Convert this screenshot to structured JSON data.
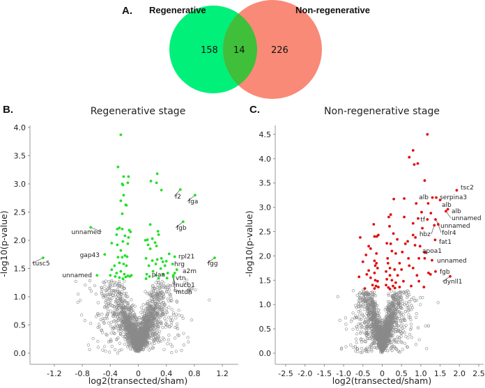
{
  "colors": {
    "regen": "#00f07a",
    "nonregen": "#f98a78",
    "overlap": "#3fbf3a",
    "green_pt": "#22e02a",
    "red_pt": "#e01010",
    "gray_pt": "#8a8a8a",
    "axis": "#bbbbbb"
  },
  "venn": {
    "panel": "A.",
    "left_label": "Regenerative",
    "right_label": "Non-regenerative",
    "left_only": "158",
    "overlap": "14",
    "right_only": "226"
  },
  "chart_data": [
    {
      "panel": "B.",
      "type": "scatter",
      "title": "Regenerative stage",
      "xlabel": "log2(transected/sham)",
      "ylabel": "-log10(p-value)",
      "xlim": [
        -1.45,
        1.45
      ],
      "ylim": [
        -0.1,
        4.1
      ],
      "xticks": [
        "-1.2",
        "-0.8",
        "-0.4",
        "0",
        "0.4",
        "0.8",
        "1.2"
      ],
      "yticks": [
        "0.0",
        "0.5",
        "1.0",
        "1.5",
        "2.0",
        "2.5",
        "3.0",
        "3.5",
        "4.0"
      ],
      "significance_threshold": 1.3,
      "labeled": [
        {
          "gene": "tusc5",
          "x": -1.36,
          "y": 1.69
        },
        {
          "gene": "unnamed",
          "x": -0.68,
          "y": 2.23
        },
        {
          "gene": "gap43",
          "x": -0.48,
          "y": 1.75
        },
        {
          "gene": "unnamed",
          "x": -0.59,
          "y": 1.38
        },
        {
          "gene": "f2",
          "x": 0.6,
          "y": 2.9
        },
        {
          "gene": "fga",
          "x": 0.81,
          "y": 2.8
        },
        {
          "gene": "fgb",
          "x": 0.64,
          "y": 2.33
        },
        {
          "gene": "fgg",
          "x": 1.09,
          "y": 1.69
        },
        {
          "gene": "rpl21",
          "x": 0.52,
          "y": 1.71
        },
        {
          "gene": "hrg",
          "x": 0.49,
          "y": 1.58
        },
        {
          "gene": "a2m",
          "x": 0.55,
          "y": 1.48
        },
        {
          "gene": "vtn",
          "x": 0.52,
          "y": 1.42
        },
        {
          "gene": "nucb1",
          "x": 0.5,
          "y": 1.38
        },
        {
          "gene": "mtdh",
          "x": 0.5,
          "y": 1.35
        },
        {
          "gene": "plaa",
          "x": 0.42,
          "y": 1.42
        }
      ],
      "significant": [
        [
          -0.25,
          3.87
        ],
        [
          -0.29,
          3.3
        ],
        [
          -0.21,
          3.13
        ],
        [
          -0.14,
          3.13
        ],
        [
          -0.23,
          3.0
        ],
        [
          -0.22,
          2.98
        ],
        [
          -0.15,
          3.02
        ],
        [
          0.27,
          3.18
        ],
        [
          0.18,
          3.05
        ],
        [
          0.26,
          3.02
        ],
        [
          0.33,
          2.89
        ],
        [
          -0.21,
          2.8
        ],
        [
          -0.25,
          2.7
        ],
        [
          -0.18,
          2.63
        ],
        [
          -0.17,
          2.62
        ],
        [
          -0.23,
          2.47
        ],
        [
          0.17,
          2.28
        ],
        [
          -0.3,
          2.2
        ],
        [
          -0.27,
          2.22
        ],
        [
          -0.23,
          2.2
        ],
        [
          -0.13,
          2.18
        ],
        [
          0.28,
          2.16
        ],
        [
          -0.11,
          2.15
        ],
        [
          0.29,
          2.1
        ],
        [
          -0.31,
          2.1
        ],
        [
          -0.19,
          2.08
        ],
        [
          -0.14,
          2.05
        ],
        [
          0.1,
          2.0
        ],
        [
          0.13,
          2.01
        ],
        [
          0.2,
          2.03
        ],
        [
          0.24,
          1.96
        ],
        [
          -0.38,
          1.95
        ],
        [
          -0.3,
          1.92
        ],
        [
          -0.22,
          1.98
        ],
        [
          -0.15,
          1.94
        ],
        [
          0.14,
          1.92
        ],
        [
          0.26,
          1.9
        ],
        [
          0.17,
          1.85
        ],
        [
          -0.25,
          1.82
        ],
        [
          -0.23,
          1.7
        ],
        [
          -0.19,
          1.73
        ],
        [
          -0.16,
          1.71
        ],
        [
          -0.29,
          1.7
        ],
        [
          0.11,
          1.68
        ],
        [
          0.2,
          1.64
        ],
        [
          0.27,
          1.66
        ],
        [
          0.33,
          1.68
        ],
        [
          0.35,
          1.62
        ],
        [
          0.4,
          1.63
        ],
        [
          0.44,
          1.76
        ],
        [
          -0.34,
          1.55
        ],
        [
          -0.27,
          1.6
        ],
        [
          -0.21,
          1.58
        ],
        [
          -0.17,
          1.55
        ],
        [
          0.15,
          1.55
        ],
        [
          0.25,
          1.58
        ],
        [
          0.32,
          1.5
        ],
        [
          0.38,
          1.55
        ],
        [
          -0.38,
          1.48
        ],
        [
          -0.31,
          1.42
        ],
        [
          -0.25,
          1.45
        ],
        [
          -0.2,
          1.4
        ],
        [
          -0.15,
          1.37
        ],
        [
          -0.12,
          1.36
        ],
        [
          -0.18,
          1.35
        ],
        [
          -0.27,
          1.34
        ],
        [
          -0.33,
          1.36
        ],
        [
          0.12,
          1.4
        ],
        [
          0.16,
          1.36
        ],
        [
          0.21,
          1.45
        ],
        [
          0.25,
          1.38
        ],
        [
          0.29,
          1.33
        ],
        [
          0.35,
          1.4
        ],
        [
          0.41,
          1.33
        ],
        [
          0.11,
          1.32
        ],
        [
          -0.22,
          1.32
        ],
        [
          -0.1,
          1.38
        ],
        [
          -0.4,
          1.38
        ]
      ]
    },
    {
      "panel": "C.",
      "type": "scatter",
      "title": "Non-regenerative stage",
      "xlabel": "log2(transected/sham)",
      "ylabel": "-log10(p-value)",
      "xlim": [
        -2.75,
        2.5
      ],
      "ylim": [
        -0.1,
        4.7
      ],
      "xticks": [
        "-2.5",
        "-2.0",
        "-1.5",
        "-1.0",
        "-0.5",
        "0",
        "0.5",
        "1.0",
        "1.5",
        "2.0",
        "2.5"
      ],
      "yticks": [
        "0.0",
        "0.5",
        "1.0",
        "1.5",
        "2.0",
        "2.5",
        "3.0",
        "3.5",
        "4.0",
        "4.5"
      ],
      "significance_threshold": 1.3,
      "labeled": [
        {
          "gene": "tsc2",
          "x": 1.93,
          "y": 3.35
        },
        {
          "gene": "alb",
          "x": 1.3,
          "y": 3.2
        },
        {
          "gene": "serpina3",
          "x": 1.4,
          "y": 3.2
        },
        {
          "gene": "alb",
          "x": 1.5,
          "y": 3.15
        },
        {
          "gene": "alb",
          "x": 1.7,
          "y": 2.96
        },
        {
          "gene": "unnamed",
          "x": 1.65,
          "y": 2.92
        },
        {
          "gene": "tf",
          "x": 1.17,
          "y": 2.75
        },
        {
          "gene": "unnamed",
          "x": 1.38,
          "y": 2.75
        },
        {
          "gene": "folr4",
          "x": 1.45,
          "y": 2.65
        },
        {
          "gene": "hbz",
          "x": 1.35,
          "y": 2.63
        },
        {
          "gene": "fat1",
          "x": 1.37,
          "y": 2.33
        },
        {
          "gene": "apoa1",
          "x": 0.98,
          "y": 2.2
        },
        {
          "gene": "unnamed",
          "x": 1.29,
          "y": 1.91
        },
        {
          "gene": "fgb",
          "x": 1.38,
          "y": 1.68
        },
        {
          "gene": "dynll1",
          "x": 1.76,
          "y": 1.58
        }
      ],
      "significant": [
        [
          1.17,
          4.5
        ],
        [
          0.8,
          4.17
        ],
        [
          0.7,
          4.03
        ],
        [
          0.83,
          3.88
        ],
        [
          0.92,
          3.9
        ],
        [
          1.1,
          3.55
        ],
        [
          0.3,
          3.17
        ],
        [
          0.57,
          3.18
        ],
        [
          0.88,
          3.08
        ],
        [
          1.19,
          3.08
        ],
        [
          1.02,
          2.9
        ],
        [
          0.22,
          2.85
        ],
        [
          0.17,
          2.8
        ],
        [
          0.57,
          2.8
        ],
        [
          0.93,
          2.77
        ],
        [
          1.26,
          2.88
        ],
        [
          -0.22,
          2.65
        ],
        [
          0.19,
          2.61
        ],
        [
          0.8,
          2.67
        ],
        [
          1.04,
          2.57
        ],
        [
          -0.57,
          2.38
        ],
        [
          -0.2,
          2.4
        ],
        [
          -0.14,
          2.4
        ],
        [
          -0.1,
          2.43
        ],
        [
          0.29,
          2.46
        ],
        [
          0.39,
          2.34
        ],
        [
          0.8,
          2.43
        ],
        [
          0.86,
          2.38
        ],
        [
          0.66,
          2.3
        ],
        [
          0.12,
          2.26
        ],
        [
          0.22,
          2.25
        ],
        [
          0.6,
          2.25
        ],
        [
          0.85,
          2.22
        ],
        [
          -0.35,
          2.2
        ],
        [
          -0.3,
          2.15
        ],
        [
          0.25,
          2.1
        ],
        [
          0.35,
          2.05
        ],
        [
          0.52,
          2.08
        ],
        [
          1.1,
          2.07
        ],
        [
          1.12,
          2.07
        ],
        [
          -0.42,
          2.02
        ],
        [
          -0.15,
          2.05
        ],
        [
          0.68,
          1.95
        ],
        [
          0.95,
          1.95
        ],
        [
          1.1,
          1.95
        ],
        [
          0.14,
          1.95
        ],
        [
          -0.5,
          1.88
        ],
        [
          -0.2,
          1.9
        ],
        [
          -0.15,
          1.85
        ],
        [
          0.15,
          1.85
        ],
        [
          0.45,
          1.85
        ],
        [
          0.7,
          1.8
        ],
        [
          0.8,
          1.75
        ],
        [
          -0.18,
          1.8
        ],
        [
          -0.12,
          1.75
        ],
        [
          0.2,
          1.75
        ],
        [
          0.32,
          1.72
        ],
        [
          0.5,
          1.72
        ],
        [
          1.2,
          1.65
        ],
        [
          1.25,
          1.62
        ],
        [
          -0.35,
          1.7
        ],
        [
          -0.4,
          1.62
        ],
        [
          -0.2,
          1.65
        ],
        [
          0.1,
          1.68
        ],
        [
          0.2,
          1.6
        ],
        [
          0.4,
          1.6
        ],
        [
          0.9,
          1.6
        ],
        [
          -0.6,
          1.57
        ],
        [
          -0.3,
          1.55
        ],
        [
          -0.18,
          1.5
        ],
        [
          -0.12,
          1.48
        ],
        [
          0.12,
          1.52
        ],
        [
          0.25,
          1.5
        ],
        [
          0.35,
          1.45
        ],
        [
          0.55,
          1.48
        ],
        [
          0.95,
          1.48
        ],
        [
          -0.25,
          1.4
        ],
        [
          -0.16,
          1.38
        ],
        [
          -0.1,
          1.36
        ],
        [
          0.1,
          1.4
        ],
        [
          0.16,
          1.35
        ],
        [
          0.28,
          1.38
        ],
        [
          0.45,
          1.36
        ],
        [
          0.75,
          1.38
        ],
        [
          1.08,
          1.36
        ],
        [
          -0.45,
          1.33
        ],
        [
          -0.2,
          1.33
        ],
        [
          0.2,
          1.32
        ],
        [
          0.33,
          1.34
        ]
      ]
    }
  ]
}
